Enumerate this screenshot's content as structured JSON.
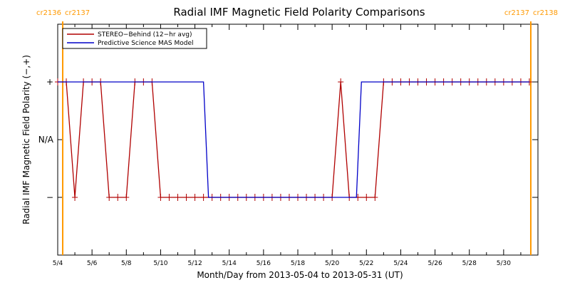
{
  "chart_data": {
    "type": "line",
    "title": "Radial IMF Magnetic Field Polarity Comparisons",
    "xlabel": "Month/Day from 2013-05-04 to 2013-05-31 (UT)",
    "ylabel": "Radial IMF Magnetic Field Polarity (−,+)",
    "xlim": [
      "2013-05-04T00:00",
      "2013-06-01T00:00"
    ],
    "x_ticks": [
      "5/4",
      "5/6",
      "5/8",
      "5/10",
      "5/12",
      "5/14",
      "5/16",
      "5/18",
      "5/20",
      "5/22",
      "5/24",
      "5/26",
      "5/28",
      "5/30"
    ],
    "y_ticks": [
      "+",
      "N/A",
      "−"
    ],
    "y_values_legend": {
      "plus": 1,
      "na": 0,
      "minus": -1
    },
    "ylim": [
      -2,
      2
    ],
    "legend_position": "top-left",
    "carrington_markers": [
      {
        "date": "2013-05-04T07:00",
        "label_left": "cr2136",
        "label_right": "cr2137"
      },
      {
        "date": "2013-05-31T14:00",
        "label_left": "cr2137",
        "label_right": "cr2138"
      }
    ],
    "series": [
      {
        "name": "STEREO−Behind (12−hr avg)",
        "color": "#b00000",
        "x": [
          "2013-05-04T00:00",
          "2013-05-04T12:00",
          "2013-05-05T00:00",
          "2013-05-05T12:00",
          "2013-05-06T00:00",
          "2013-05-06T12:00",
          "2013-05-07T00:00",
          "2013-05-07T12:00",
          "2013-05-08T00:00",
          "2013-05-08T12:00",
          "2013-05-09T00:00",
          "2013-05-09T12:00",
          "2013-05-10T00:00",
          "2013-05-10T12:00",
          "2013-05-11T00:00",
          "2013-05-11T12:00",
          "2013-05-12T00:00",
          "2013-05-12T12:00",
          "2013-05-13T00:00",
          "2013-05-13T12:00",
          "2013-05-14T00:00",
          "2013-05-14T12:00",
          "2013-05-15T00:00",
          "2013-05-15T12:00",
          "2013-05-16T00:00",
          "2013-05-16T12:00",
          "2013-05-17T00:00",
          "2013-05-17T12:00",
          "2013-05-18T00:00",
          "2013-05-18T12:00",
          "2013-05-19T00:00",
          "2013-05-19T12:00",
          "2013-05-20T00:00",
          "2013-05-20T12:00",
          "2013-05-21T00:00",
          "2013-05-21T12:00",
          "2013-05-22T00:00",
          "2013-05-22T12:00",
          "2013-05-23T00:00",
          "2013-05-23T12:00",
          "2013-05-24T00:00",
          "2013-05-24T12:00",
          "2013-05-25T00:00",
          "2013-05-25T12:00",
          "2013-05-26T00:00",
          "2013-05-26T12:00",
          "2013-05-27T00:00",
          "2013-05-27T12:00",
          "2013-05-28T00:00",
          "2013-05-28T12:00",
          "2013-05-29T00:00",
          "2013-05-29T12:00",
          "2013-05-30T00:00",
          "2013-05-30T12:00",
          "2013-05-31T00:00",
          "2013-05-31T12:00"
        ],
        "y": [
          1,
          1,
          -1,
          1,
          1,
          1,
          -1,
          -1,
          -1,
          1,
          1,
          1,
          -1,
          -1,
          -1,
          -1,
          -1,
          -1,
          -1,
          -1,
          -1,
          -1,
          -1,
          -1,
          -1,
          -1,
          -1,
          -1,
          -1,
          -1,
          -1,
          -1,
          -1,
          1,
          -1,
          -1,
          -1,
          -1,
          1,
          1,
          1,
          1,
          1,
          1,
          1,
          1,
          1,
          1,
          1,
          1,
          1,
          1,
          1,
          1,
          1,
          1
        ]
      },
      {
        "name": "Predictive Science MAS Model",
        "color": "#0000c8",
        "x": [
          "2013-05-04T00:00",
          "2013-05-12T12:00",
          "2013-05-12T19:00",
          "2013-05-21T10:00",
          "2013-05-21T17:00",
          "2013-05-31T12:00"
        ],
        "y": [
          1,
          1,
          -1,
          -1,
          1,
          1
        ]
      }
    ]
  }
}
